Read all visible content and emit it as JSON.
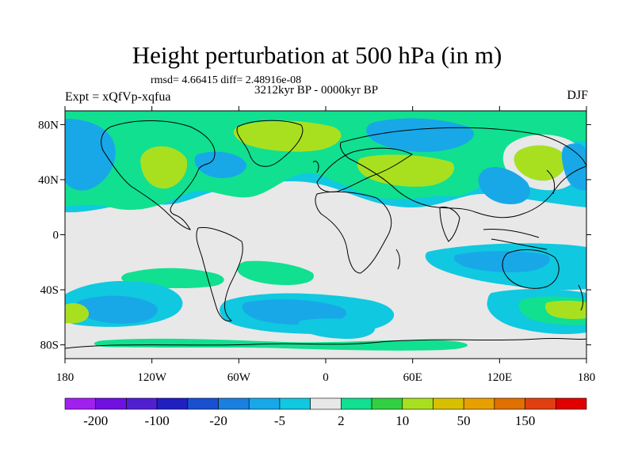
{
  "title": "Height perturbation at 500 hPa (in m)",
  "stats": "rmsd= 4.66415 diff= 2.48916e-08",
  "period": "3212kyr BP - 0000kyr BP",
  "expt": "Expt = xQfVp-xqfua",
  "season": "DJF",
  "axes": {
    "x_ticks": [
      {
        "value": -180,
        "label": "180"
      },
      {
        "value": -120,
        "label": "120W"
      },
      {
        "value": -60,
        "label": "60W"
      },
      {
        "value": 0,
        "label": "0"
      },
      {
        "value": 60,
        "label": "60E"
      },
      {
        "value": 120,
        "label": "120E"
      },
      {
        "value": 180,
        "label": "180"
      }
    ],
    "y_ticks": [
      {
        "value": 80,
        "label": "80N"
      },
      {
        "value": 40,
        "label": "40N"
      },
      {
        "value": 0,
        "label": "0"
      },
      {
        "value": -40,
        "label": "40S"
      },
      {
        "value": -80,
        "label": "80S"
      }
    ],
    "lon_range": [
      -180,
      180
    ],
    "lat_range": [
      -90,
      90
    ]
  },
  "colorbar": {
    "colors": [
      "#a020f0",
      "#7010e0",
      "#5020d0",
      "#2020c0",
      "#1850d0",
      "#1a80e0",
      "#18a8e8",
      "#10c8e0",
      "#e8e8e8",
      "#10e090",
      "#30d040",
      "#a8e020",
      "#d8c000",
      "#e8a000",
      "#e07000",
      "#e04010",
      "#e00000"
    ],
    "labels": [
      {
        "boundary": 1,
        "text": "-200"
      },
      {
        "boundary": 3,
        "text": "-100"
      },
      {
        "boundary": 5,
        "text": "-20"
      },
      {
        "boundary": 7,
        "text": "-5"
      },
      {
        "boundary": 9,
        "text": "2"
      },
      {
        "boundary": 11,
        "text": "10"
      },
      {
        "boundary": 13,
        "text": "50"
      },
      {
        "boundary": 15,
        "text": "150"
      }
    ]
  },
  "fields": {
    "neutral": "#e8e8e8",
    "light_blue": "#10c8e0",
    "blue": "#18a8e8",
    "dark_blue": "#1a80e0",
    "green": "#10e090",
    "yellow_green": "#a8e020",
    "mid_green": "#30d040"
  }
}
